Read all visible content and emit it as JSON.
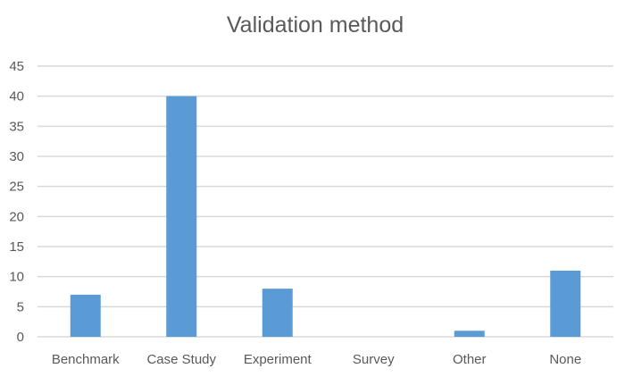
{
  "chart_data": {
    "type": "bar",
    "title": "Validation method",
    "xlabel": "",
    "ylabel": "",
    "categories": [
      "Benchmark",
      "Case Study",
      "Experiment",
      "Survey",
      "Other",
      "None"
    ],
    "values": [
      7,
      40,
      8,
      0,
      1,
      11
    ],
    "ylim": [
      0,
      45
    ],
    "yticks": [
      0,
      5,
      10,
      15,
      20,
      25,
      30,
      35,
      40,
      45
    ],
    "grid": true,
    "legend": "none",
    "bar_color": "#5b9bd5"
  }
}
